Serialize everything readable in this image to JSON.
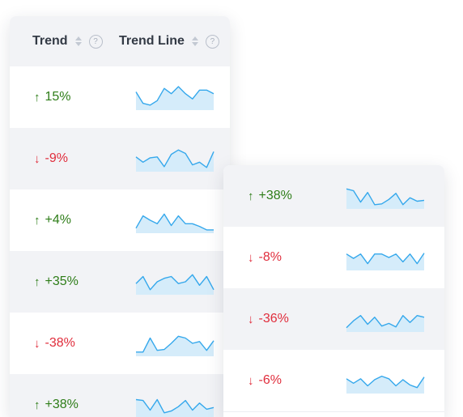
{
  "header": {
    "trend_label": "Trend",
    "trend_line_label": "Trend Line",
    "help_glyph": "?"
  },
  "icons": {
    "up": "arrow-up-icon",
    "down": "arrow-down-icon",
    "sort": "sort-icon",
    "help": "help-icon"
  },
  "colors": {
    "up": "#2e7d18",
    "down": "#e02d3c",
    "spark_line": "#35a8ec",
    "spark_fill": "#d5ecfa"
  },
  "table_left": {
    "rows": [
      {
        "trend": "15%",
        "direction": "up",
        "spark": [
          18,
          5,
          3,
          8,
          22,
          16,
          24,
          16,
          10,
          20,
          20,
          16
        ]
      },
      {
        "trend": "-9%",
        "direction": "down",
        "spark": [
          14,
          8,
          13,
          14,
          3,
          17,
          22,
          18,
          5,
          8,
          2,
          20
        ]
      },
      {
        "trend": "+4%",
        "direction": "up",
        "spark": [
          3,
          17,
          12,
          8,
          19,
          6,
          17,
          8,
          8,
          5,
          1,
          1
        ]
      },
      {
        "trend": "+35%",
        "direction": "up",
        "spark": [
          10,
          18,
          3,
          12,
          16,
          18,
          10,
          12,
          20,
          8,
          18,
          3
        ]
      },
      {
        "trend": "-38%",
        "direction": "down",
        "spark": [
          2,
          2,
          18,
          4,
          5,
          12,
          20,
          18,
          12,
          14,
          4,
          15
        ]
      },
      {
        "trend": "+38%",
        "direction": "up",
        "spark": [
          18,
          17,
          6,
          18,
          3,
          5,
          10,
          17,
          6,
          14,
          7,
          9
        ]
      }
    ]
  },
  "table_right": {
    "rows": [
      {
        "trend": "+38%",
        "direction": "up",
        "spark": [
          20,
          18,
          5,
          16,
          2,
          3,
          8,
          15,
          2,
          10,
          6,
          7
        ]
      },
      {
        "trend": "-8%",
        "direction": "down",
        "spark": [
          16,
          11,
          16,
          5,
          16,
          16,
          12,
          16,
          7,
          16,
          5,
          17
        ]
      },
      {
        "trend": "-36%",
        "direction": "down",
        "spark": [
          2,
          10,
          16,
          6,
          14,
          4,
          7,
          3,
          16,
          8,
          16,
          14
        ]
      },
      {
        "trend": "-6%",
        "direction": "down",
        "spark": [
          14,
          9,
          14,
          6,
          13,
          17,
          14,
          6,
          13,
          7,
          4,
          16
        ]
      }
    ]
  }
}
